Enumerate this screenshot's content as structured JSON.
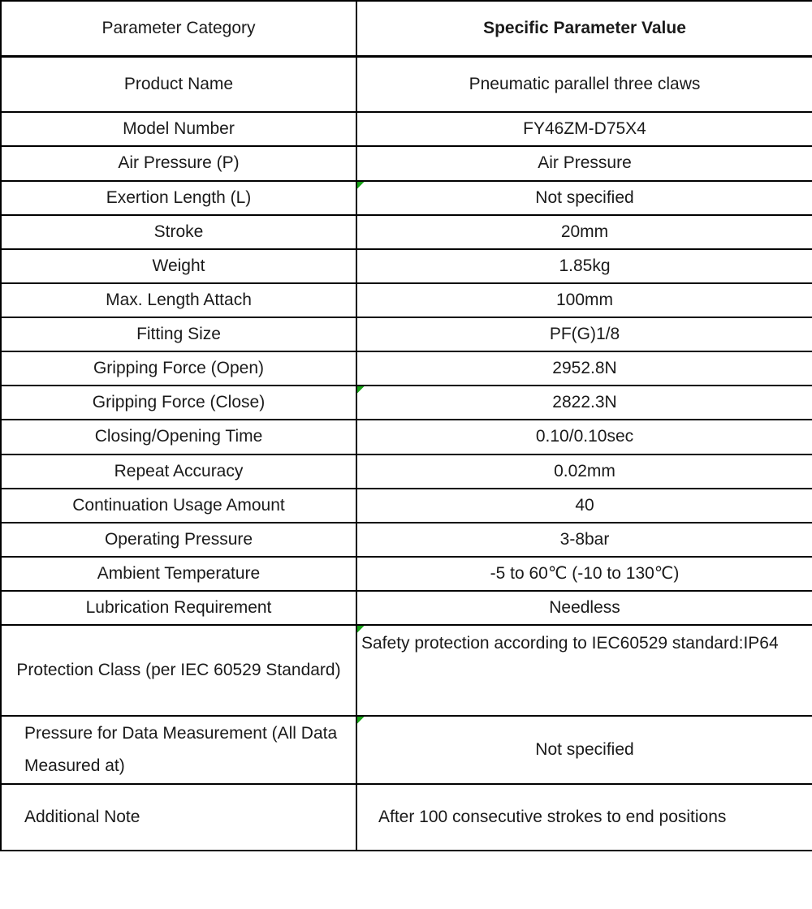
{
  "table": {
    "header": {
      "category": "Parameter Category",
      "value": "Specific Parameter Value"
    },
    "rows": [
      {
        "category": "Product Name",
        "value": "Pneumatic parallel three claws"
      },
      {
        "category": "Model Number",
        "value": "FY46ZM-D75X4"
      },
      {
        "category": "Air Pressure (P)",
        "value": "Air Pressure"
      },
      {
        "category": "Exertion Length (L)",
        "value": "Not specified",
        "flag": true
      },
      {
        "category": "Stroke",
        "value": "20mm"
      },
      {
        "category": "Weight",
        "value": "1.85kg"
      },
      {
        "category": "Max. Length Attach",
        "value": "100mm"
      },
      {
        "category": "Fitting Size",
        "value": "PF(G)1/8"
      },
      {
        "category": "Gripping Force (Open)",
        "value": "2952.8N"
      },
      {
        "category": "Gripping Force (Close)",
        "value": "2822.3N",
        "flag": true
      },
      {
        "category": "Closing/Opening Time",
        "value": "0.10/0.10sec"
      },
      {
        "category": "Repeat Accuracy",
        "value": "0.02mm"
      },
      {
        "category": "Continuation Usage Amount",
        "value": "40"
      },
      {
        "category": "Operating Pressure",
        "value": "3-8bar"
      },
      {
        "category": "Ambient Temperature",
        "value": "-5 to 60℃ (-10 to 130℃)"
      },
      {
        "category": "Lubrication Requirement",
        "value": "Needless"
      },
      {
        "category": "Protection Class (per IEC 60529 Standard)",
        "value": "Safety protection according to IEC60529 standard:IP64",
        "flag": true
      },
      {
        "category": "Pressure for Data Measurement (All Data Measured at)",
        "value": "Not specified",
        "flag": true
      },
      {
        "category": "Additional Note",
        "value": "After 100 consecutive strokes to end positions"
      }
    ]
  },
  "icons": {
    "flag": "error-indicator-triangle"
  },
  "colors": {
    "border": "#000000",
    "text": "#1a1a1a",
    "flag_green": "#17a317",
    "background": "#ffffff"
  }
}
